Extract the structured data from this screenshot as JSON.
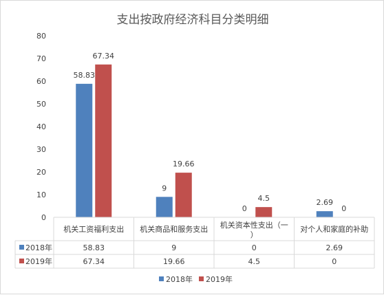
{
  "chart_data": {
    "type": "bar",
    "title": "支出按政府经济科目分类明细",
    "categories": [
      "机关工资福利支出",
      "机关商品和服务支出",
      "机关资本性支出（一）",
      "对个人和家庭的补助"
    ],
    "category_lines": [
      [
        "机关工资福利支出"
      ],
      [
        "机关商品和服务支出"
      ],
      [
        "机关资本性支出（一",
        "）"
      ],
      [
        "对个人和家庭的补助"
      ]
    ],
    "series": [
      {
        "name": "2018年",
        "values": [
          58.83,
          9,
          0,
          2.69
        ],
        "labels": [
          "58.83",
          "9",
          "0",
          "2.69"
        ],
        "color": "#4f81bd"
      },
      {
        "name": "2019年",
        "values": [
          67.34,
          19.66,
          4.5,
          0
        ],
        "labels": [
          "67.34",
          "19.66",
          "4.5",
          "0"
        ],
        "color": "#c0504d"
      }
    ],
    "yticks": [
      0,
      10,
      20,
      30,
      40,
      50,
      60,
      70,
      80
    ],
    "ylim": [
      0,
      80
    ],
    "data_table": true,
    "legend_position": "bottom",
    "grid": false
  }
}
